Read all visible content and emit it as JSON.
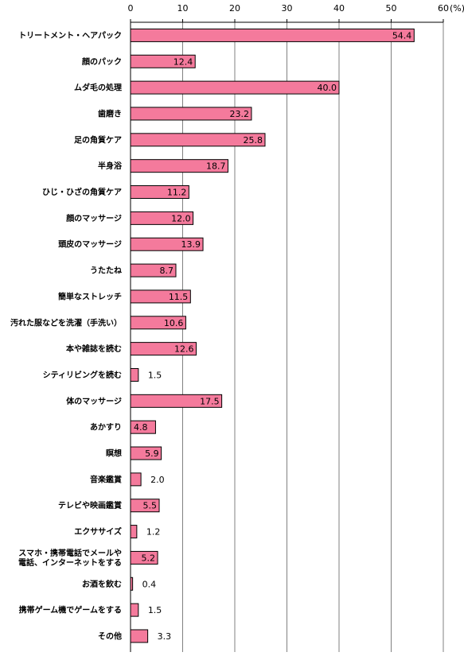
{
  "chart_data": {
    "type": "bar",
    "orientation": "horizontal",
    "title": "",
    "xlabel": "",
    "ylabel": "",
    "unit_label": "(%)",
    "xlim": [
      0,
      60
    ],
    "x_ticks": [
      "0",
      "10",
      "20",
      "30",
      "40",
      "50",
      "60"
    ],
    "grid": true,
    "bar_color": "#f47a9c",
    "categories": [
      [
        "トリートメント・ヘアパック"
      ],
      [
        "顔のパック"
      ],
      [
        "ムダ毛の処理"
      ],
      [
        "歯磨き"
      ],
      [
        "足の角質ケア"
      ],
      [
        "半身浴"
      ],
      [
        "ひじ・ひざの角質ケア"
      ],
      [
        "顔のマッサージ"
      ],
      [
        "頭皮のマッサージ"
      ],
      [
        "うたたね"
      ],
      [
        "簡単なストレッチ"
      ],
      [
        "汚れた服などを洗濯（手洗い）"
      ],
      [
        "本や雑誌を読む"
      ],
      [
        "シティリビングを読む"
      ],
      [
        "体のマッサージ"
      ],
      [
        "あかすり"
      ],
      [
        "瞑想"
      ],
      [
        "音楽鑑賞"
      ],
      [
        "テレビや映画鑑賞"
      ],
      [
        "エクササイズ"
      ],
      [
        "スマホ・携帯電話でメールや",
        "電話、インターネットをする"
      ],
      [
        "お酒を飲む"
      ],
      [
        "携帯ゲーム機でゲームをする"
      ],
      [
        "その他"
      ]
    ],
    "values": [
      54.4,
      12.4,
      40.0,
      23.2,
      25.8,
      18.7,
      11.2,
      12.0,
      13.9,
      8.7,
      11.5,
      10.6,
      12.6,
      1.5,
      17.5,
      4.8,
      5.9,
      2.0,
      5.5,
      1.2,
      5.2,
      0.4,
      1.5,
      3.3
    ],
    "value_labels": [
      "54.4",
      "12.4",
      "40.0",
      "23.2",
      "25.8",
      "18.7",
      "11.2",
      "12.0",
      "13.9",
      "8.7",
      "11.5",
      "10.6",
      "12.6",
      "1.5",
      "17.5",
      "4.8",
      "5.9",
      "2.0",
      "5.5",
      "1.2",
      "5.2",
      "0.4",
      "1.5",
      "3.3"
    ]
  }
}
